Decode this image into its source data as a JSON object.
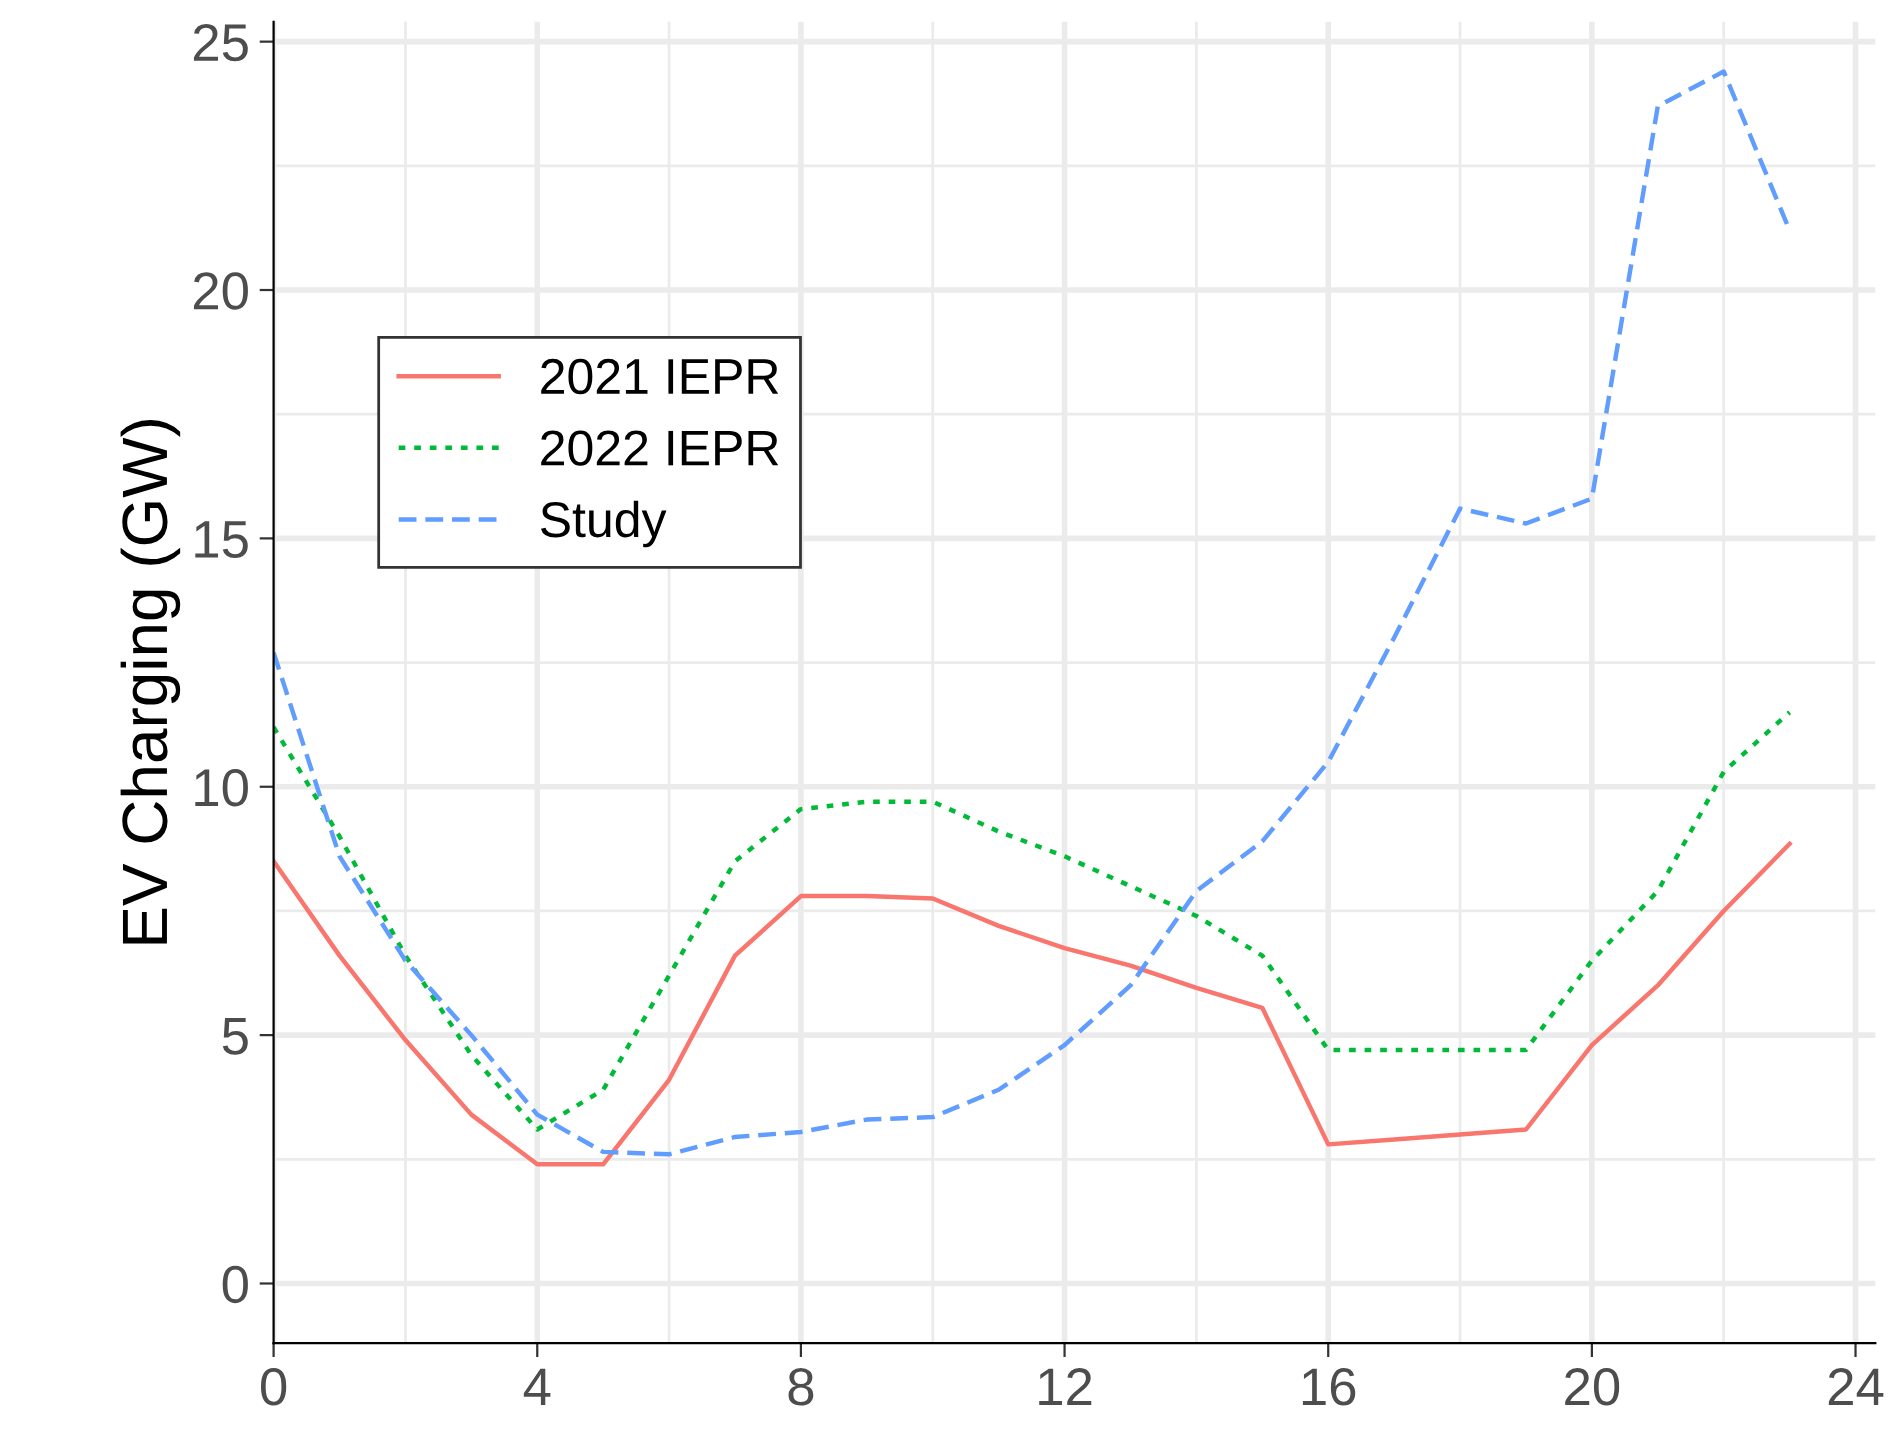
{
  "chart_data": {
    "type": "line",
    "ylabel": "EV Charging (GW)",
    "x": [
      0,
      1,
      2,
      3,
      4,
      5,
      6,
      7,
      8,
      9,
      10,
      11,
      12,
      13,
      14,
      15,
      16,
      17,
      18,
      19,
      20,
      21,
      22,
      23
    ],
    "xlim": [
      0,
      24.3
    ],
    "xticks": [
      0,
      4,
      8,
      12,
      16,
      20,
      24
    ],
    "ylim": [
      -1.2,
      25.4
    ],
    "yticks": [
      0,
      5,
      10,
      15,
      20,
      25
    ],
    "grid": true,
    "legend": "top left",
    "marker": "none",
    "series": [
      {
        "name": "2021 IEPR",
        "color": "#f8766d",
        "line_style": "solid",
        "values": [
          8.5,
          6.6,
          4.9,
          3.4,
          2.4,
          2.4,
          4.1,
          6.6,
          7.8,
          7.8,
          7.75,
          7.2,
          6.75,
          6.4,
          5.95,
          5.55,
          2.8,
          2.9,
          3.0,
          3.1,
          4.8,
          6.0,
          7.5,
          8.85
        ]
      },
      {
        "name": "2022 IEPR",
        "color": "#00ba38",
        "line_style": "dotted",
        "values": [
          11.2,
          9.0,
          6.6,
          4.6,
          3.1,
          3.9,
          6.2,
          8.5,
          9.55,
          9.7,
          9.7,
          9.1,
          8.6,
          8.0,
          7.4,
          6.6,
          4.7,
          4.7,
          4.7,
          4.7,
          6.5,
          7.9,
          10.3,
          11.5
        ]
      },
      {
        "name": "Study",
        "color": "#619cff",
        "line_style": "dashed",
        "values": [
          12.7,
          8.6,
          6.5,
          5.0,
          3.4,
          2.65,
          2.6,
          2.95,
          3.05,
          3.3,
          3.35,
          3.9,
          4.8,
          6.0,
          7.9,
          8.9,
          10.5,
          13.0,
          15.6,
          15.3,
          15.8,
          23.7,
          24.4,
          21.2
        ]
      }
    ]
  }
}
